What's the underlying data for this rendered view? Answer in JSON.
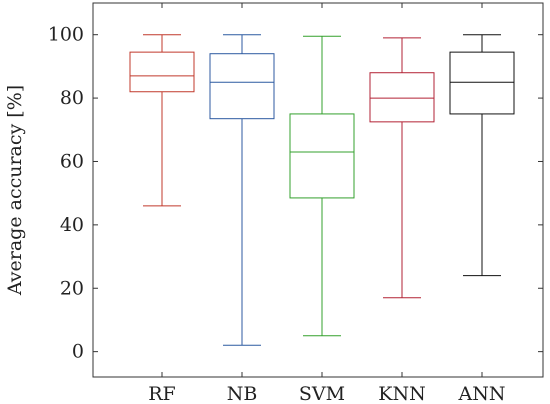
{
  "chart_data": {
    "type": "box",
    "title": "",
    "xlabel": "",
    "ylabel": "Average accuracy [%]",
    "ylim": [
      -8,
      110
    ],
    "yticks": [
      0,
      20,
      40,
      60,
      80,
      100
    ],
    "ytick_labels": [
      "0",
      "20",
      "40",
      "60",
      "80",
      "100"
    ],
    "grid": false,
    "categories": [
      "RF",
      "NB",
      "SVM",
      "KNN",
      "ANN"
    ],
    "series": [
      {
        "category": "RF",
        "min": 46,
        "q1": 82,
        "median": 87,
        "q3": 94.5,
        "max": 100,
        "color": "#c0392b"
      },
      {
        "category": "NB",
        "min": 2,
        "q1": 73.5,
        "median": 85,
        "q3": 94,
        "max": 100,
        "color": "#2c5aa0"
      },
      {
        "category": "SVM",
        "min": 5,
        "q1": 48.5,
        "median": 63,
        "q3": 75,
        "max": 99.5,
        "color": "#33a02c"
      },
      {
        "category": "KNN",
        "min": 17,
        "q1": 72.5,
        "median": 80,
        "q3": 88,
        "max": 99,
        "color": "#b22234"
      },
      {
        "category": "ANN",
        "min": 24,
        "q1": 75,
        "median": 85,
        "q3": 94.5,
        "max": 100,
        "color": "#111111"
      }
    ]
  }
}
